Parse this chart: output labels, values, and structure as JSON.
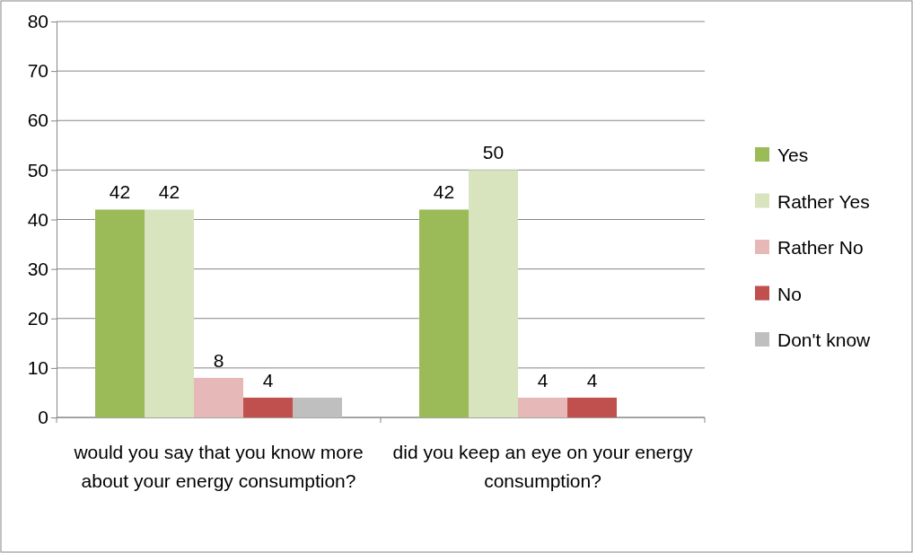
{
  "chart_data": {
    "type": "bar",
    "categories": [
      "would you say that  you know more about your energy consumption?",
      "did you keep an eye on your energy consumption?"
    ],
    "series": [
      {
        "name": "Yes",
        "color": "#9bbb59",
        "values": [
          42,
          42
        ],
        "value_labels": [
          "42",
          "42"
        ]
      },
      {
        "name": "Rather Yes",
        "color": "#d7e4bd",
        "values": [
          42,
          50
        ],
        "value_labels": [
          "42",
          "50"
        ]
      },
      {
        "name": "Rather No",
        "color": "#e6b9b8",
        "values": [
          8,
          4
        ],
        "value_labels": [
          "8",
          "4"
        ]
      },
      {
        "name": "No",
        "color": "#c0504d",
        "values": [
          4,
          4
        ],
        "value_labels": [
          "4",
          "4"
        ]
      },
      {
        "name": "Don't know",
        "color": "#bfbfbf",
        "values": [
          4,
          null
        ],
        "value_labels": [
          null,
          null
        ]
      }
    ],
    "ylim": [
      0,
      80
    ],
    "yticks": [
      0,
      10,
      20,
      30,
      40,
      50,
      60,
      70,
      80
    ],
    "grid": "y",
    "legend": "right"
  }
}
